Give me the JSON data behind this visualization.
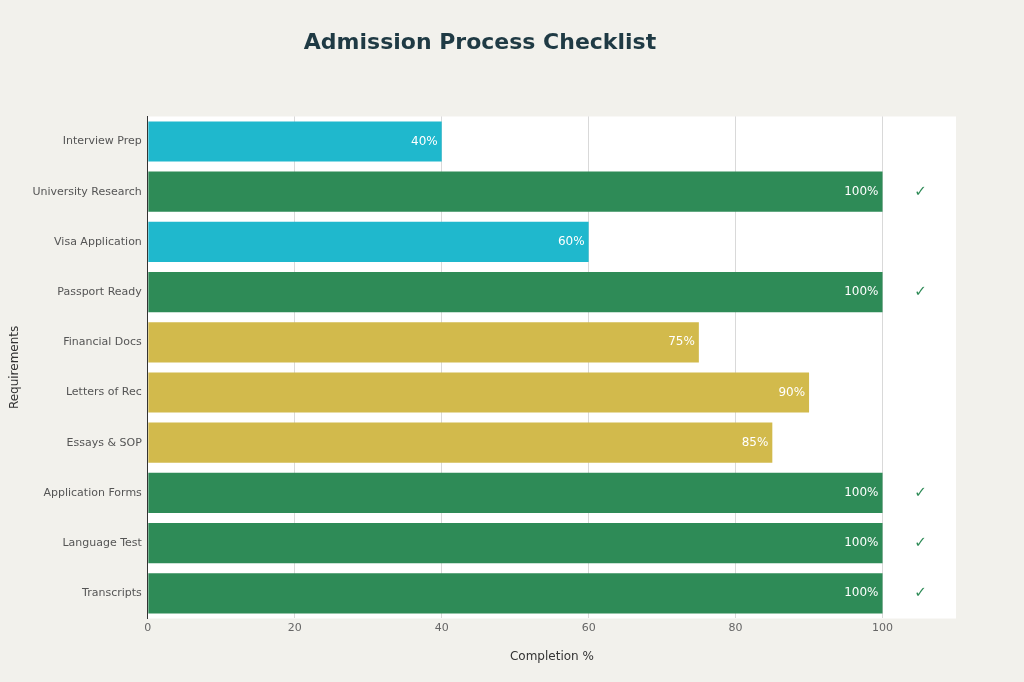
{
  "chart_data": {
    "type": "bar",
    "orientation": "horizontal",
    "title": "Admission Process Checklist",
    "xlabel": "Completion %",
    "ylabel": "Requirements",
    "categories": [
      "Interview Prep",
      "University Research",
      "Visa Application",
      "Passport Ready",
      "Financial Docs",
      "Letters of Rec",
      "Essays & SOP",
      "Application Forms",
      "Language Test",
      "Transcripts"
    ],
    "values": [
      40,
      100,
      60,
      100,
      75,
      90,
      85,
      100,
      100,
      100
    ],
    "colors": [
      "#1fb8cd",
      "#2e8b57",
      "#1fb8cd",
      "#2e8b57",
      "#d2ba4c",
      "#d2ba4c",
      "#d2ba4c",
      "#2e8b57",
      "#2e8b57",
      "#2e8b57"
    ],
    "value_labels": [
      "40%",
      "100%",
      "60%",
      "100%",
      "75%",
      "90%",
      "85%",
      "100%",
      "100%",
      "100%"
    ],
    "xlim": [
      0,
      110
    ],
    "xticks": [
      0,
      20,
      40,
      60,
      80,
      100
    ],
    "grid": "x",
    "legend": false,
    "annotations": [
      "✓",
      "✓",
      "✓",
      "✓",
      "✓"
    ]
  }
}
